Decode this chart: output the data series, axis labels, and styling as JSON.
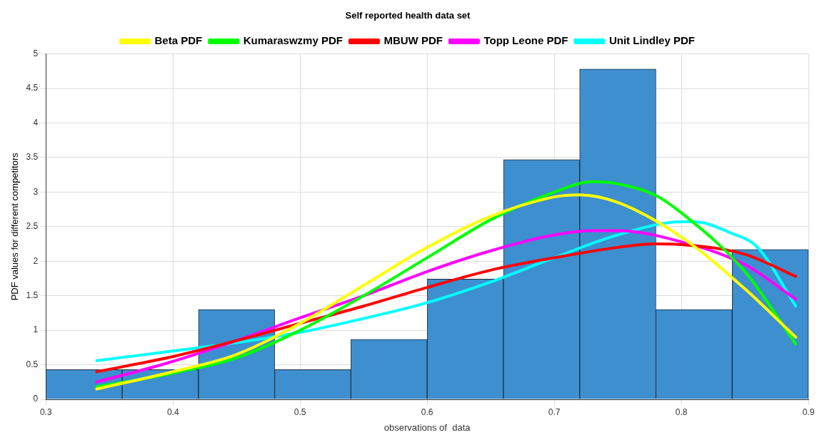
{
  "chart_data": {
    "type": "histogram",
    "title": "Self reported health data set",
    "xlabel": "observations of  data",
    "ylabel": "PDF values for different competitors",
    "bins": [
      0.3,
      0.36,
      0.42,
      0.48,
      0.54,
      0.6,
      0.66,
      0.72,
      0.78,
      0.84,
      0.9
    ],
    "values": [
      0.43,
      0.43,
      1.3,
      0.43,
      0.87,
      1.74,
      3.47,
      4.78,
      1.3,
      2.17
    ],
    "color": "#3d8fcf",
    "series": [
      {
        "type": "line",
        "name": "Beta PDF",
        "color": "#ffff00",
        "x": [
          0.34,
          0.4,
          0.45,
          0.5,
          0.55,
          0.6,
          0.65,
          0.7,
          0.72,
          0.75,
          0.8,
          0.85,
          0.89
        ],
        "values": [
          0.15,
          0.4,
          0.65,
          1.1,
          1.65,
          2.2,
          2.65,
          2.93,
          2.96,
          2.85,
          2.35,
          1.6,
          0.9
        ]
      },
      {
        "type": "line",
        "name": "Kumaraswzmy PDF",
        "color": "#00ff00",
        "x": [
          0.34,
          0.4,
          0.45,
          0.5,
          0.55,
          0.6,
          0.65,
          0.7,
          0.73,
          0.75,
          0.78,
          0.8,
          0.85,
          0.89
        ],
        "values": [
          0.18,
          0.38,
          0.6,
          1.0,
          1.5,
          2.05,
          2.6,
          3.0,
          3.15,
          3.12,
          2.95,
          2.7,
          1.85,
          0.8
        ]
      },
      {
        "type": "line",
        "name": "MBUW PDF",
        "color": "#ff0000",
        "x": [
          0.34,
          0.4,
          0.45,
          0.5,
          0.55,
          0.6,
          0.65,
          0.7,
          0.75,
          0.78,
          0.8,
          0.85,
          0.89
        ],
        "values": [
          0.4,
          0.62,
          0.85,
          1.1,
          1.35,
          1.62,
          1.87,
          2.05,
          2.2,
          2.25,
          2.24,
          2.1,
          1.78
        ]
      },
      {
        "type": "line",
        "name": "Topp Leone PDF",
        "color": "#ff00ff",
        "x": [
          0.34,
          0.4,
          0.45,
          0.5,
          0.55,
          0.6,
          0.65,
          0.7,
          0.73,
          0.75,
          0.8,
          0.85,
          0.89
        ],
        "values": [
          0.25,
          0.55,
          0.85,
          1.18,
          1.5,
          1.85,
          2.15,
          2.38,
          2.44,
          2.44,
          2.28,
          1.95,
          1.45
        ]
      },
      {
        "type": "line",
        "name": "Unit Lindley PDF",
        "color": "#00ffff",
        "x": [
          0.34,
          0.4,
          0.45,
          0.5,
          0.55,
          0.6,
          0.65,
          0.7,
          0.75,
          0.8,
          0.81,
          0.84,
          0.86,
          0.89
        ],
        "values": [
          0.56,
          0.7,
          0.82,
          0.97,
          1.17,
          1.4,
          1.7,
          2.05,
          2.38,
          2.57,
          2.57,
          2.4,
          2.2,
          1.35
        ]
      }
    ],
    "xlim": [
      0.3,
      0.9
    ],
    "xticks": [
      0.3,
      0.4,
      0.5,
      0.6,
      0.7,
      0.8,
      0.9
    ],
    "ylim": [
      0,
      5
    ],
    "yticks": [
      0,
      0.5,
      1,
      1.5,
      2,
      2.5,
      3,
      3.5,
      4,
      4.5,
      5
    ],
    "grid": true,
    "legend": "top",
    "marker": "none"
  }
}
